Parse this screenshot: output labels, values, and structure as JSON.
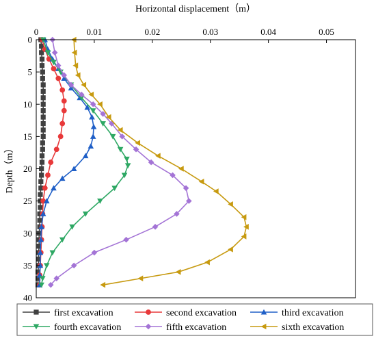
{
  "chart_data": {
    "type": "line",
    "title": "",
    "xlabel": "Horizontal displacement（m）",
    "ylabel": "Depth（m）",
    "xlim": [
      0,
      0.055
    ],
    "ylim": [
      0,
      40
    ],
    "y_inverted": true,
    "x_axis_position": "top",
    "xticks": [
      "0",
      "0.01",
      "0.02",
      "0.03",
      "0.04",
      "0.05"
    ],
    "yticks": [
      "0",
      "5",
      "10",
      "15",
      "20",
      "25",
      "30",
      "35",
      "40"
    ],
    "grid": false,
    "legend_placement": "bottom",
    "series": [
      {
        "name": "first excavation",
        "color": "#404040",
        "marker": "square",
        "points": [
          [
            0.0008,
            0
          ],
          [
            0.0009,
            1
          ],
          [
            0.0009,
            2
          ],
          [
            0.001,
            3
          ],
          [
            0.001,
            4
          ],
          [
            0.0011,
            5
          ],
          [
            0.0011,
            6
          ],
          [
            0.0012,
            7
          ],
          [
            0.0012,
            8
          ],
          [
            0.0012,
            9
          ],
          [
            0.0012,
            10
          ],
          [
            0.0012,
            11
          ],
          [
            0.0012,
            12
          ],
          [
            0.0012,
            13
          ],
          [
            0.0012,
            14
          ],
          [
            0.0012,
            15
          ],
          [
            0.0011,
            16
          ],
          [
            0.0011,
            17
          ],
          [
            0.001,
            18
          ],
          [
            0.001,
            19
          ],
          [
            0.0009,
            20
          ],
          [
            0.0009,
            21
          ],
          [
            0.0008,
            22
          ],
          [
            0.0008,
            23
          ],
          [
            0.0007,
            24
          ],
          [
            0.0007,
            25
          ],
          [
            0.0007,
            26
          ],
          [
            0.0006,
            27
          ],
          [
            0.0006,
            28
          ],
          [
            0.0006,
            29
          ],
          [
            0.0005,
            30
          ],
          [
            0.0005,
            31
          ],
          [
            0.0005,
            32
          ],
          [
            0.0004,
            33
          ],
          [
            0.0004,
            34
          ],
          [
            0.0004,
            35
          ],
          [
            0.0003,
            36
          ],
          [
            0.0003,
            37
          ],
          [
            0.0003,
            38
          ]
        ]
      },
      {
        "name": "second excavation",
        "color": "#e8393a",
        "marker": "circle",
        "points": [
          [
            0.001,
            0
          ],
          [
            0.0015,
            1.5
          ],
          [
            0.0022,
            3
          ],
          [
            0.003,
            4.5
          ],
          [
            0.0038,
            6
          ],
          [
            0.0045,
            7.8
          ],
          [
            0.0048,
            9.5
          ],
          [
            0.0048,
            11
          ],
          [
            0.0045,
            13
          ],
          [
            0.0042,
            15
          ],
          [
            0.0035,
            17
          ],
          [
            0.0025,
            19
          ],
          [
            0.002,
            21
          ],
          [
            0.0015,
            23
          ],
          [
            0.0012,
            25
          ],
          [
            0.0011,
            27
          ],
          [
            0.001,
            29
          ],
          [
            0.0009,
            31
          ],
          [
            0.0008,
            33
          ],
          [
            0.0007,
            35
          ],
          [
            0.0006,
            36.5
          ],
          [
            0.0006,
            38
          ]
        ]
      },
      {
        "name": "third excavation",
        "color": "#1f5fc7",
        "marker": "triangle-up",
        "points": [
          [
            0.0015,
            0
          ],
          [
            0.002,
            1.5
          ],
          [
            0.0028,
            3
          ],
          [
            0.0038,
            4.5
          ],
          [
            0.0048,
            6
          ],
          [
            0.006,
            7.5
          ],
          [
            0.0075,
            9
          ],
          [
            0.0088,
            10.5
          ],
          [
            0.0096,
            12
          ],
          [
            0.0099,
            13.5
          ],
          [
            0.0098,
            15
          ],
          [
            0.0094,
            16.5
          ],
          [
            0.0085,
            18
          ],
          [
            0.0065,
            20
          ],
          [
            0.0045,
            21.5
          ],
          [
            0.003,
            23
          ],
          [
            0.0018,
            25
          ],
          [
            0.0012,
            27
          ],
          [
            0.0009,
            29
          ],
          [
            0.0008,
            31
          ],
          [
            0.0007,
            33
          ],
          [
            0.0007,
            35
          ],
          [
            0.0006,
            36.5
          ],
          [
            0.0006,
            38
          ]
        ]
      },
      {
        "name": "fourth excavation",
        "color": "#2ea864",
        "marker": "triangle-down",
        "points": [
          [
            0.0012,
            0
          ],
          [
            0.002,
            2
          ],
          [
            0.003,
            3.5
          ],
          [
            0.0042,
            5
          ],
          [
            0.006,
            7
          ],
          [
            0.0078,
            9
          ],
          [
            0.0098,
            11
          ],
          [
            0.0115,
            13
          ],
          [
            0.0132,
            15
          ],
          [
            0.0145,
            17
          ],
          [
            0.0156,
            18.5
          ],
          [
            0.0158,
            19.5
          ],
          [
            0.0152,
            21
          ],
          [
            0.0135,
            23
          ],
          [
            0.011,
            25
          ],
          [
            0.0085,
            27
          ],
          [
            0.0062,
            29
          ],
          [
            0.0045,
            31
          ],
          [
            0.0028,
            33
          ],
          [
            0.0018,
            35
          ],
          [
            0.0011,
            37
          ],
          [
            0.0009,
            38
          ]
        ]
      },
      {
        "name": "fifth excavation",
        "color": "#a474d6",
        "marker": "diamond",
        "points": [
          [
            0.0028,
            0
          ],
          [
            0.0032,
            2
          ],
          [
            0.0038,
            4
          ],
          [
            0.0048,
            5.5
          ],
          [
            0.006,
            7
          ],
          [
            0.0078,
            8.5
          ],
          [
            0.0098,
            10
          ],
          [
            0.0115,
            11.5
          ],
          [
            0.013,
            13
          ],
          [
            0.0148,
            15
          ],
          [
            0.0172,
            17
          ],
          [
            0.0198,
            19
          ],
          [
            0.0235,
            21
          ],
          [
            0.0258,
            23
          ],
          [
            0.0263,
            25
          ],
          [
            0.0242,
            27
          ],
          [
            0.0205,
            29
          ],
          [
            0.0155,
            31
          ],
          [
            0.01,
            33
          ],
          [
            0.0065,
            35
          ],
          [
            0.0035,
            37
          ],
          [
            0.0025,
            38
          ]
        ]
      },
      {
        "name": "sixth excavation",
        "color": "#c79a10",
        "marker": "triangle-left",
        "points": [
          [
            0.0065,
            0
          ],
          [
            0.0066,
            2
          ],
          [
            0.0068,
            4
          ],
          [
            0.0072,
            5.5
          ],
          [
            0.0082,
            7
          ],
          [
            0.0095,
            8.5
          ],
          [
            0.011,
            10
          ],
          [
            0.0125,
            12
          ],
          [
            0.0145,
            14
          ],
          [
            0.0175,
            16
          ],
          [
            0.021,
            18
          ],
          [
            0.025,
            20
          ],
          [
            0.0285,
            22
          ],
          [
            0.031,
            23.5
          ],
          [
            0.0335,
            25.5
          ],
          [
            0.0358,
            27.5
          ],
          [
            0.0362,
            29
          ],
          [
            0.0358,
            30.5
          ],
          [
            0.0335,
            32.5
          ],
          [
            0.0295,
            34.5
          ],
          [
            0.0245,
            36
          ],
          [
            0.018,
            37
          ],
          [
            0.0115,
            38
          ]
        ]
      }
    ]
  }
}
